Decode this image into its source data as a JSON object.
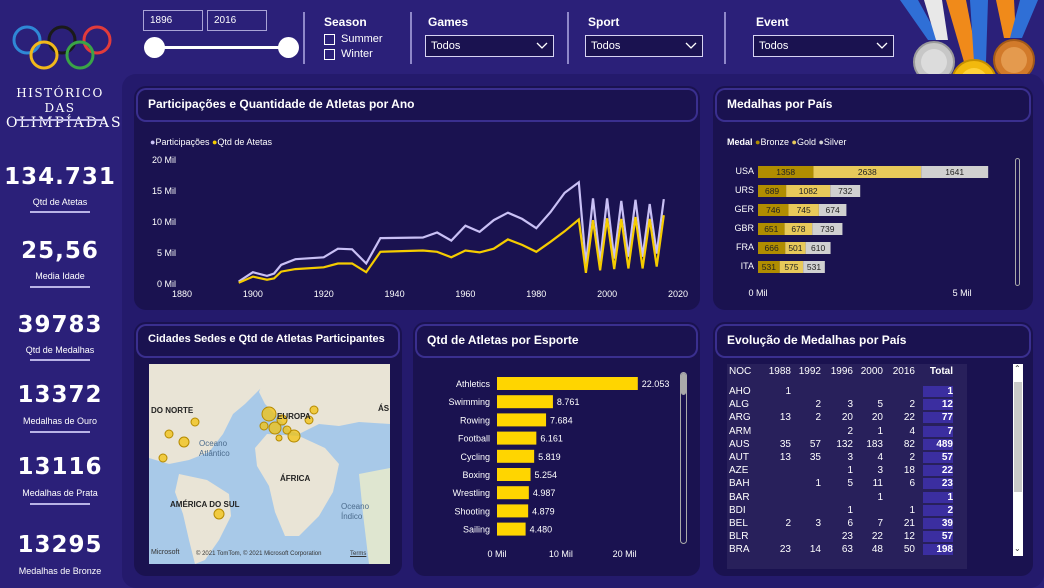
{
  "sidebar": {
    "title_line1": "HISTÓRICO DAS",
    "title_line2": "OLIMPÍADAS",
    "kpis": [
      {
        "value": "134.731",
        "label": "Qtd de Atetas"
      },
      {
        "value": "25,56",
        "label": "Media Idade"
      },
      {
        "value": "39783",
        "label": "Qtd de Medalhas"
      },
      {
        "value": "13372",
        "label": "Medalhas de Ouro"
      },
      {
        "value": "13116",
        "label": "Medalhas de Prata"
      },
      {
        "value": "13295",
        "label": "Medalhas de Bronze"
      }
    ]
  },
  "filters": {
    "year_start": "1896",
    "year_end": "2016",
    "season_title": "Season",
    "season_options": [
      "Summer",
      "Winter"
    ],
    "games_title": "Games",
    "games_value": "Todos",
    "sport_title": "Sport",
    "sport_value": "Todos",
    "event_title": "Event",
    "event_value": "Todos"
  },
  "panels": {
    "line_title": "Participações e Quantidade de Atletas por Ano",
    "medals_title": "Medalhas por País",
    "map_title": "Cidades Sedes e Qtd de Atletas Participantes",
    "sport_title": "Qtd de Atletas por Esporte",
    "evo_title": "Evolução de Medalhas por País"
  },
  "map": {
    "labels": [
      "DO NORTE",
      "EUROPA",
      "Oceano Atlântico",
      "ÁFRICA",
      "AMÉRICA DO SUL",
      "Oceano Índico",
      "ÁS"
    ],
    "attribution": "© 2021 TomTom, © 2021 Microsoft Corporation",
    "brand": "Microsoft",
    "terms": "Terms"
  },
  "colors": {
    "participacoes": "#c9c0f5",
    "atletas": "#f5cc00",
    "bronze": "#b08d00",
    "gold": "#e8c95a",
    "silver": "#d0d0d0",
    "sport_bar": "#ffd500"
  },
  "chart_data": [
    {
      "type": "line",
      "title": "Participações e Quantidade de Atletas por Ano",
      "xlim": [
        1880,
        2020
      ],
      "ylim": [
        0,
        20000
      ],
      "xticks": [
        "1880",
        "1900",
        "1920",
        "1940",
        "1960",
        "1980",
        "2000",
        "2020"
      ],
      "yticks": [
        "0 Mil",
        "5 Mil",
        "10 Mil",
        "15 Mil",
        "20 Mil"
      ],
      "series": [
        {
          "name": "Participações",
          "x": [
            1896,
            1900,
            1904,
            1906,
            1908,
            1912,
            1920,
            1924,
            1928,
            1932,
            1936,
            1948,
            1952,
            1956,
            1960,
            1964,
            1968,
            1972,
            1976,
            1980,
            1984,
            1988,
            1992,
            1994,
            1996,
            1998,
            2000,
            2002,
            2004,
            2006,
            2008,
            2010,
            2012,
            2014,
            2016
          ],
          "values": [
            400,
            1900,
            1300,
            1700,
            3100,
            4000,
            4300,
            5700,
            5600,
            3300,
            7400,
            7500,
            8300,
            7000,
            9400,
            8400,
            10300,
            11500,
            10500,
            9000,
            11600,
            14700,
            16400,
            3200,
            13800,
            3600,
            13800,
            4100,
            13400,
            4400,
            13600,
            4400,
            12900,
            4900,
            13700
          ]
        },
        {
          "name": "Qtd de Atetas",
          "x": [
            1896,
            1900,
            1904,
            1906,
            1908,
            1912,
            1920,
            1924,
            1928,
            1932,
            1936,
            1948,
            1952,
            1956,
            1960,
            1964,
            1968,
            1972,
            1976,
            1980,
            1984,
            1988,
            1992,
            1994,
            1996,
            1998,
            2000,
            2002,
            2004,
            2006,
            2008,
            2010,
            2012,
            2014,
            2016
          ],
          "values": [
            200,
            1200,
            700,
            900,
            2000,
            2400,
            2700,
            3300,
            3300,
            1900,
            5200,
            5400,
            5200,
            4300,
            5400,
            5100,
            5700,
            7200,
            6300,
            5200,
            6800,
            8500,
            10400,
            1800,
            10300,
            2200,
            10600,
            2400,
            10500,
            2500,
            10800,
            2500,
            10500,
            2800,
            11100
          ]
        }
      ]
    },
    {
      "type": "bar",
      "title": "Medalhas por País",
      "legend_title": "Medal",
      "categories": [
        "USA",
        "URS",
        "GER",
        "GBR",
        "FRA",
        "ITA"
      ],
      "series": [
        {
          "name": "Bronze",
          "values": [
            1358,
            689,
            746,
            651,
            666,
            531
          ]
        },
        {
          "name": "Gold",
          "values": [
            2638,
            1082,
            745,
            678,
            501,
            575
          ]
        },
        {
          "name": "Silver",
          "values": [
            1641,
            732,
            674,
            739,
            610,
            531
          ]
        }
      ],
      "xticks": [
        "0 Mil",
        "5 Mil"
      ],
      "xlim": [
        0,
        6000
      ]
    },
    {
      "type": "bar",
      "title": "Qtd de Atletas por Esporte",
      "categories": [
        "Athletics",
        "Swimming",
        "Rowing",
        "Football",
        "Cycling",
        "Boxing",
        "Wrestling",
        "Shooting",
        "Sailing"
      ],
      "values": [
        22053,
        8761,
        7684,
        6161,
        5819,
        5254,
        4987,
        4879,
        4480
      ],
      "value_labels": [
        "22.053",
        "8.761",
        "7.684",
        "6.161",
        "5.819",
        "5.254",
        "4.987",
        "4.879",
        "4.480"
      ],
      "xticks": [
        "0 Mil",
        "10 Mil",
        "20 Mil"
      ],
      "xlim": [
        0,
        26000
      ]
    },
    {
      "type": "table",
      "title": "Evolução de Medalhas por País",
      "columns": [
        "NOC",
        "1988",
        "1992",
        "1996",
        "2000",
        "2016",
        "Total"
      ],
      "rows": [
        [
          "AHO",
          "1",
          "",
          "",
          "",
          "",
          "1"
        ],
        [
          "ALG",
          "",
          "2",
          "3",
          "5",
          "2",
          "12"
        ],
        [
          "ARG",
          "13",
          "2",
          "20",
          "20",
          "22",
          "77"
        ],
        [
          "ARM",
          "",
          "",
          "2",
          "1",
          "4",
          "7"
        ],
        [
          "AUS",
          "35",
          "57",
          "132",
          "183",
          "82",
          "489"
        ],
        [
          "AUT",
          "13",
          "35",
          "3",
          "4",
          "2",
          "57"
        ],
        [
          "AZE",
          "",
          "",
          "1",
          "3",
          "18",
          "22"
        ],
        [
          "BAH",
          "",
          "1",
          "5",
          "11",
          "6",
          "23"
        ],
        [
          "BAR",
          "",
          "",
          "",
          "1",
          "",
          "1"
        ],
        [
          "BDI",
          "",
          "",
          "1",
          "",
          "1",
          "2"
        ],
        [
          "BEL",
          "2",
          "3",
          "6",
          "7",
          "21",
          "39"
        ],
        [
          "BLR",
          "",
          "",
          "23",
          "22",
          "12",
          "57"
        ],
        [
          "BRA",
          "23",
          "14",
          "63",
          "48",
          "50",
          "198"
        ]
      ]
    },
    {
      "type": "scatter",
      "title": "Cidades Sedes e Qtd de Atletas Participantes"
    }
  ]
}
